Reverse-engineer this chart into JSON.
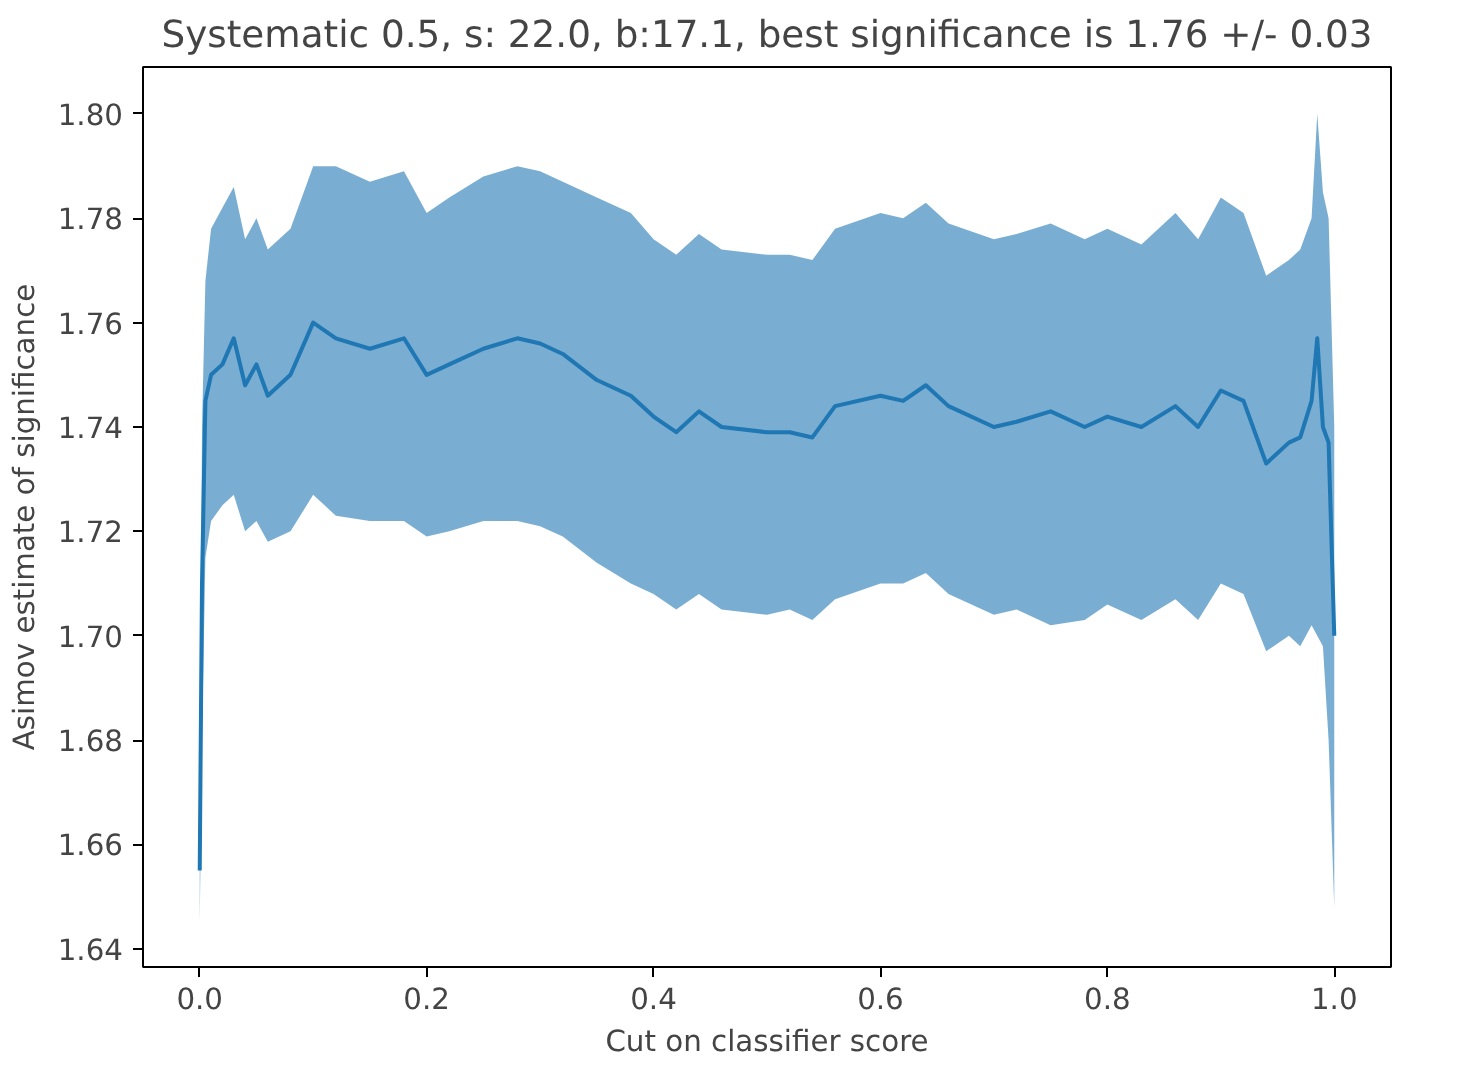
{
  "chart_data": {
    "type": "line",
    "title": "Systematic 0.5, s: 22.0, b:17.1, best significance is 1.76 +/- 0.03",
    "xlabel": "Cut on classifier score",
    "ylabel": "Asimov estimate of significance",
    "xlim": [
      -0.05,
      1.05
    ],
    "ylim": [
      1.6365,
      1.809
    ],
    "xticks": [
      {
        "value": 0,
        "label": "0.0"
      },
      0.2,
      0.4,
      0.6,
      0.8,
      {
        "value": 1,
        "label": "1.0"
      }
    ],
    "yticks": [
      1.64,
      1.66,
      1.68,
      {
        "value": 1.7,
        "label": "1.70"
      },
      1.72,
      1.74,
      1.76,
      1.78,
      {
        "value": 1.8,
        "label": "1.80"
      }
    ],
    "grid": false,
    "series": [
      {
        "color": "#1f77b4",
        "x": [
          0.0,
          0.002,
          0.005,
          0.01,
          0.02,
          0.03,
          0.04,
          0.05,
          0.06,
          0.08,
          0.1,
          0.12,
          0.15,
          0.18,
          0.2,
          0.22,
          0.25,
          0.28,
          0.3,
          0.32,
          0.35,
          0.38,
          0.4,
          0.42,
          0.44,
          0.46,
          0.5,
          0.52,
          0.54,
          0.56,
          0.6,
          0.62,
          0.64,
          0.66,
          0.7,
          0.72,
          0.75,
          0.78,
          0.8,
          0.83,
          0.86,
          0.88,
          0.9,
          0.92,
          0.94,
          0.96,
          0.97,
          0.98,
          0.985,
          0.99,
          0.995,
          1.0
        ],
        "values": [
          1.655,
          1.71,
          1.745,
          1.75,
          1.752,
          1.757,
          1.748,
          1.752,
          1.746,
          1.75,
          1.76,
          1.757,
          1.755,
          1.757,
          1.75,
          1.752,
          1.755,
          1.757,
          1.756,
          1.754,
          1.749,
          1.746,
          1.742,
          1.739,
          1.743,
          1.74,
          1.739,
          1.739,
          1.738,
          1.744,
          1.746,
          1.745,
          1.748,
          1.744,
          1.74,
          1.741,
          1.743,
          1.74,
          1.742,
          1.74,
          1.744,
          1.74,
          1.747,
          1.745,
          1.733,
          1.737,
          1.738,
          1.745,
          1.757,
          1.74,
          1.737,
          1.7
        ],
        "lower": [
          1.645,
          1.68,
          1.715,
          1.722,
          1.725,
          1.727,
          1.72,
          1.722,
          1.718,
          1.72,
          1.727,
          1.723,
          1.722,
          1.722,
          1.719,
          1.72,
          1.722,
          1.722,
          1.721,
          1.719,
          1.714,
          1.71,
          1.708,
          1.705,
          1.708,
          1.705,
          1.704,
          1.705,
          1.703,
          1.707,
          1.71,
          1.71,
          1.712,
          1.708,
          1.704,
          1.705,
          1.702,
          1.703,
          1.706,
          1.703,
          1.707,
          1.703,
          1.71,
          1.708,
          1.697,
          1.7,
          1.698,
          1.702,
          1.7,
          1.698,
          1.68,
          1.648
        ],
        "upper": [
          1.66,
          1.74,
          1.768,
          1.778,
          1.782,
          1.786,
          1.776,
          1.78,
          1.774,
          1.778,
          1.79,
          1.79,
          1.787,
          1.789,
          1.781,
          1.784,
          1.788,
          1.79,
          1.789,
          1.787,
          1.784,
          1.781,
          1.776,
          1.773,
          1.777,
          1.774,
          1.773,
          1.773,
          1.772,
          1.778,
          1.781,
          1.78,
          1.783,
          1.779,
          1.776,
          1.777,
          1.779,
          1.776,
          1.778,
          1.775,
          1.781,
          1.776,
          1.784,
          1.781,
          1.769,
          1.772,
          1.774,
          1.78,
          1.8,
          1.785,
          1.78,
          1.74
        ]
      }
    ]
  }
}
